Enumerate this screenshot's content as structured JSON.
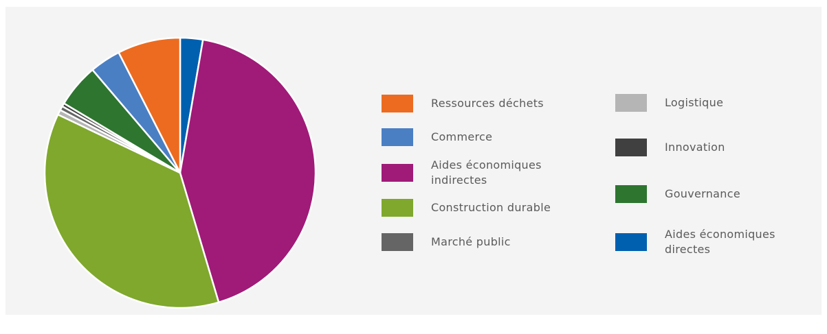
{
  "chart_data": {
    "type": "pie",
    "slices": [
      {
        "label": "Aides économiques directes",
        "value": 2.7,
        "color": "#0060b0"
      },
      {
        "label": "Aides économiques indirectes",
        "value": 42.7,
        "color": "#a01a78"
      },
      {
        "label": "Construction durable",
        "value": 36.7,
        "color": "#7fa82c"
      },
      {
        "label": "Logistique",
        "value": 0.6,
        "color": "#b5b5b5"
      },
      {
        "label": "Marché public",
        "value": 0.5,
        "color": "#656565"
      },
      {
        "label": "Innovation",
        "value": 0.4,
        "color": "#404040"
      },
      {
        "label": "Gouvernance",
        "value": 5.2,
        "color": "#2e7530"
      },
      {
        "label": "Commerce",
        "value": 3.7,
        "color": "#4a7fc4"
      },
      {
        "label": "Ressources déchets",
        "value": 7.5,
        "color": "#ec6b20"
      }
    ],
    "legend": {
      "placement": "right",
      "columns": [
        [
          "Ressources déchets",
          "Commerce",
          "Aides économiques\nindirectes",
          "Construction durable",
          "Marché public"
        ],
        [
          "Logistique",
          "Innovation",
          "Gouvernance",
          "Aides économiques\ndirectes"
        ]
      ]
    }
  },
  "legend_colors": {
    "Ressources déchets": "#ec6b20",
    "Commerce": "#4a7fc4",
    "Aides économiques indirectes": "#a01a78",
    "Construction durable": "#7fa82c",
    "Marché public": "#656565",
    "Logistique": "#b5b5b5",
    "Innovation": "#404040",
    "Gouvernance": "#2e7530",
    "Aides économiques directes": "#0060b0"
  }
}
